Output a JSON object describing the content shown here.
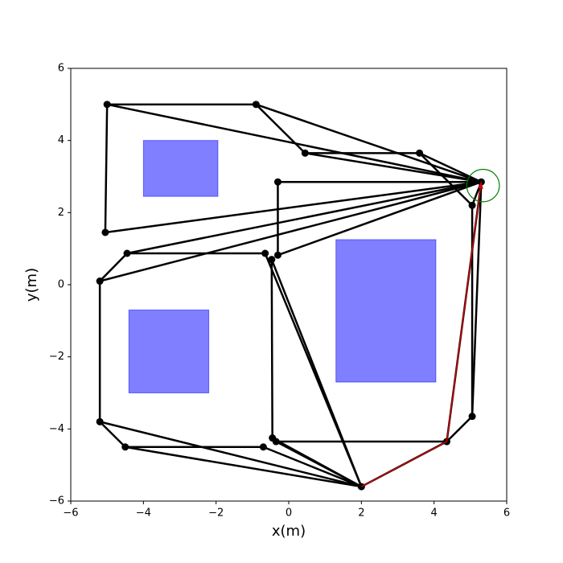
{
  "chart_data": {
    "type": "graph",
    "xlabel": "x(m)",
    "ylabel": "y(m)",
    "xlim": [
      -6,
      6
    ],
    "ylim": [
      -6,
      6
    ],
    "xticks": [
      {
        "value": -6,
        "label": "−6"
      },
      {
        "value": -4,
        "label": "−4"
      },
      {
        "value": -2,
        "label": "−2"
      },
      0,
      2,
      4,
      6
    ],
    "yticks": [
      {
        "value": -6,
        "label": "−6"
      },
      {
        "value": -4,
        "label": "−4"
      },
      {
        "value": -2,
        "label": "−2"
      },
      0,
      2,
      4,
      6
    ],
    "obstacle_color": "#0000ff",
    "obstacles": [
      {
        "x": [
          -4.0,
          -1.95
        ],
        "y": [
          2.45,
          4.0
        ]
      },
      {
        "x": [
          1.3,
          4.05
        ],
        "y": [
          -2.7,
          1.25
        ]
      },
      {
        "x": [
          -4.4,
          -2.2
        ],
        "y": [
          -3.0,
          -0.7
        ]
      }
    ],
    "graph_color": "#000000",
    "nodes": {
      "x": [
        -5.0,
        -0.9,
        0.45,
        3.6,
        5.3,
        -0.3,
        5.05,
        -5.05,
        -4.45,
        -0.65,
        -0.3,
        -0.47,
        -5.2,
        5.05,
        -5.2,
        4.35,
        -0.45,
        -0.35,
        -4.5,
        -0.7,
        2.0
      ],
      "y": [
        5.0,
        5.0,
        3.65,
        3.65,
        2.85,
        2.85,
        2.2,
        1.45,
        0.87,
        0.87,
        0.82,
        0.7,
        0.1,
        -3.65,
        -3.8,
        -4.35,
        -4.25,
        -4.35,
        -4.5,
        -4.5,
        -5.6
      ]
    },
    "edges": [
      [
        0,
        1
      ],
      [
        0,
        7
      ],
      [
        0,
        4
      ],
      [
        1,
        2
      ],
      [
        1,
        4
      ],
      [
        2,
        3
      ],
      [
        2,
        4
      ],
      [
        3,
        4
      ],
      [
        3,
        6
      ],
      [
        5,
        4
      ],
      [
        5,
        10
      ],
      [
        7,
        4
      ],
      [
        8,
        4
      ],
      [
        8,
        9
      ],
      [
        8,
        12
      ],
      [
        12,
        4
      ],
      [
        12,
        14
      ],
      [
        9,
        20
      ],
      [
        11,
        20
      ],
      [
        11,
        16
      ],
      [
        10,
        4
      ],
      [
        14,
        18
      ],
      [
        14,
        20
      ],
      [
        18,
        19
      ],
      [
        18,
        20
      ],
      [
        19,
        20
      ],
      [
        16,
        20
      ],
      [
        17,
        15
      ],
      [
        17,
        20
      ],
      [
        20,
        15
      ],
      [
        15,
        13
      ],
      [
        13,
        6
      ],
      [
        6,
        4
      ],
      [
        13,
        4
      ],
      [
        15,
        4
      ]
    ],
    "path": {
      "color": "#cc0000",
      "x": [
        2.0,
        4.35,
        5.3
      ],
      "y": [
        -5.6,
        -4.35,
        2.85
      ]
    },
    "goal": {
      "color": "#008000",
      "x": 5.35,
      "y": 2.75,
      "radius": 0.45
    }
  }
}
